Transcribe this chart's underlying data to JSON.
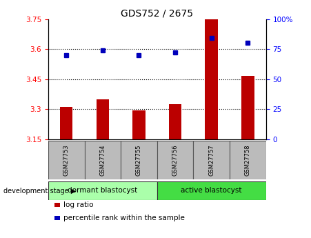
{
  "title": "GDS752 / 2675",
  "samples": [
    "GSM27753",
    "GSM27754",
    "GSM27755",
    "GSM27756",
    "GSM27757",
    "GSM27758"
  ],
  "log_ratio": [
    3.31,
    3.35,
    3.295,
    3.325,
    3.75,
    3.465
  ],
  "percentile_rank": [
    70,
    74,
    70,
    72,
    84,
    80
  ],
  "ylim_left": [
    3.15,
    3.75
  ],
  "ylim_right": [
    0,
    100
  ],
  "yticks_left": [
    3.15,
    3.3,
    3.45,
    3.6,
    3.75
  ],
  "yticks_right": [
    0,
    25,
    50,
    75,
    100
  ],
  "ytick_labels_left": [
    "3.15",
    "3.3",
    "3.45",
    "3.6",
    "3.75"
  ],
  "ytick_labels_right": [
    "0",
    "25",
    "50",
    "75",
    "100%"
  ],
  "hlines": [
    3.3,
    3.45,
    3.6
  ],
  "bar_color": "#bb0000",
  "dot_color": "#0000bb",
  "groups": [
    {
      "label": "dormant blastocyst",
      "start": 0,
      "end": 3,
      "color": "#aaffaa"
    },
    {
      "label": "active blastocyst",
      "start": 3,
      "end": 6,
      "color": "#44dd44"
    }
  ],
  "legend_bar_label": "log ratio",
  "legend_dot_label": "percentile rank within the sample",
  "xlabel_bg": "#bbbbbb",
  "plot_bg": "#ffffff",
  "fig_bg": "#ffffff"
}
